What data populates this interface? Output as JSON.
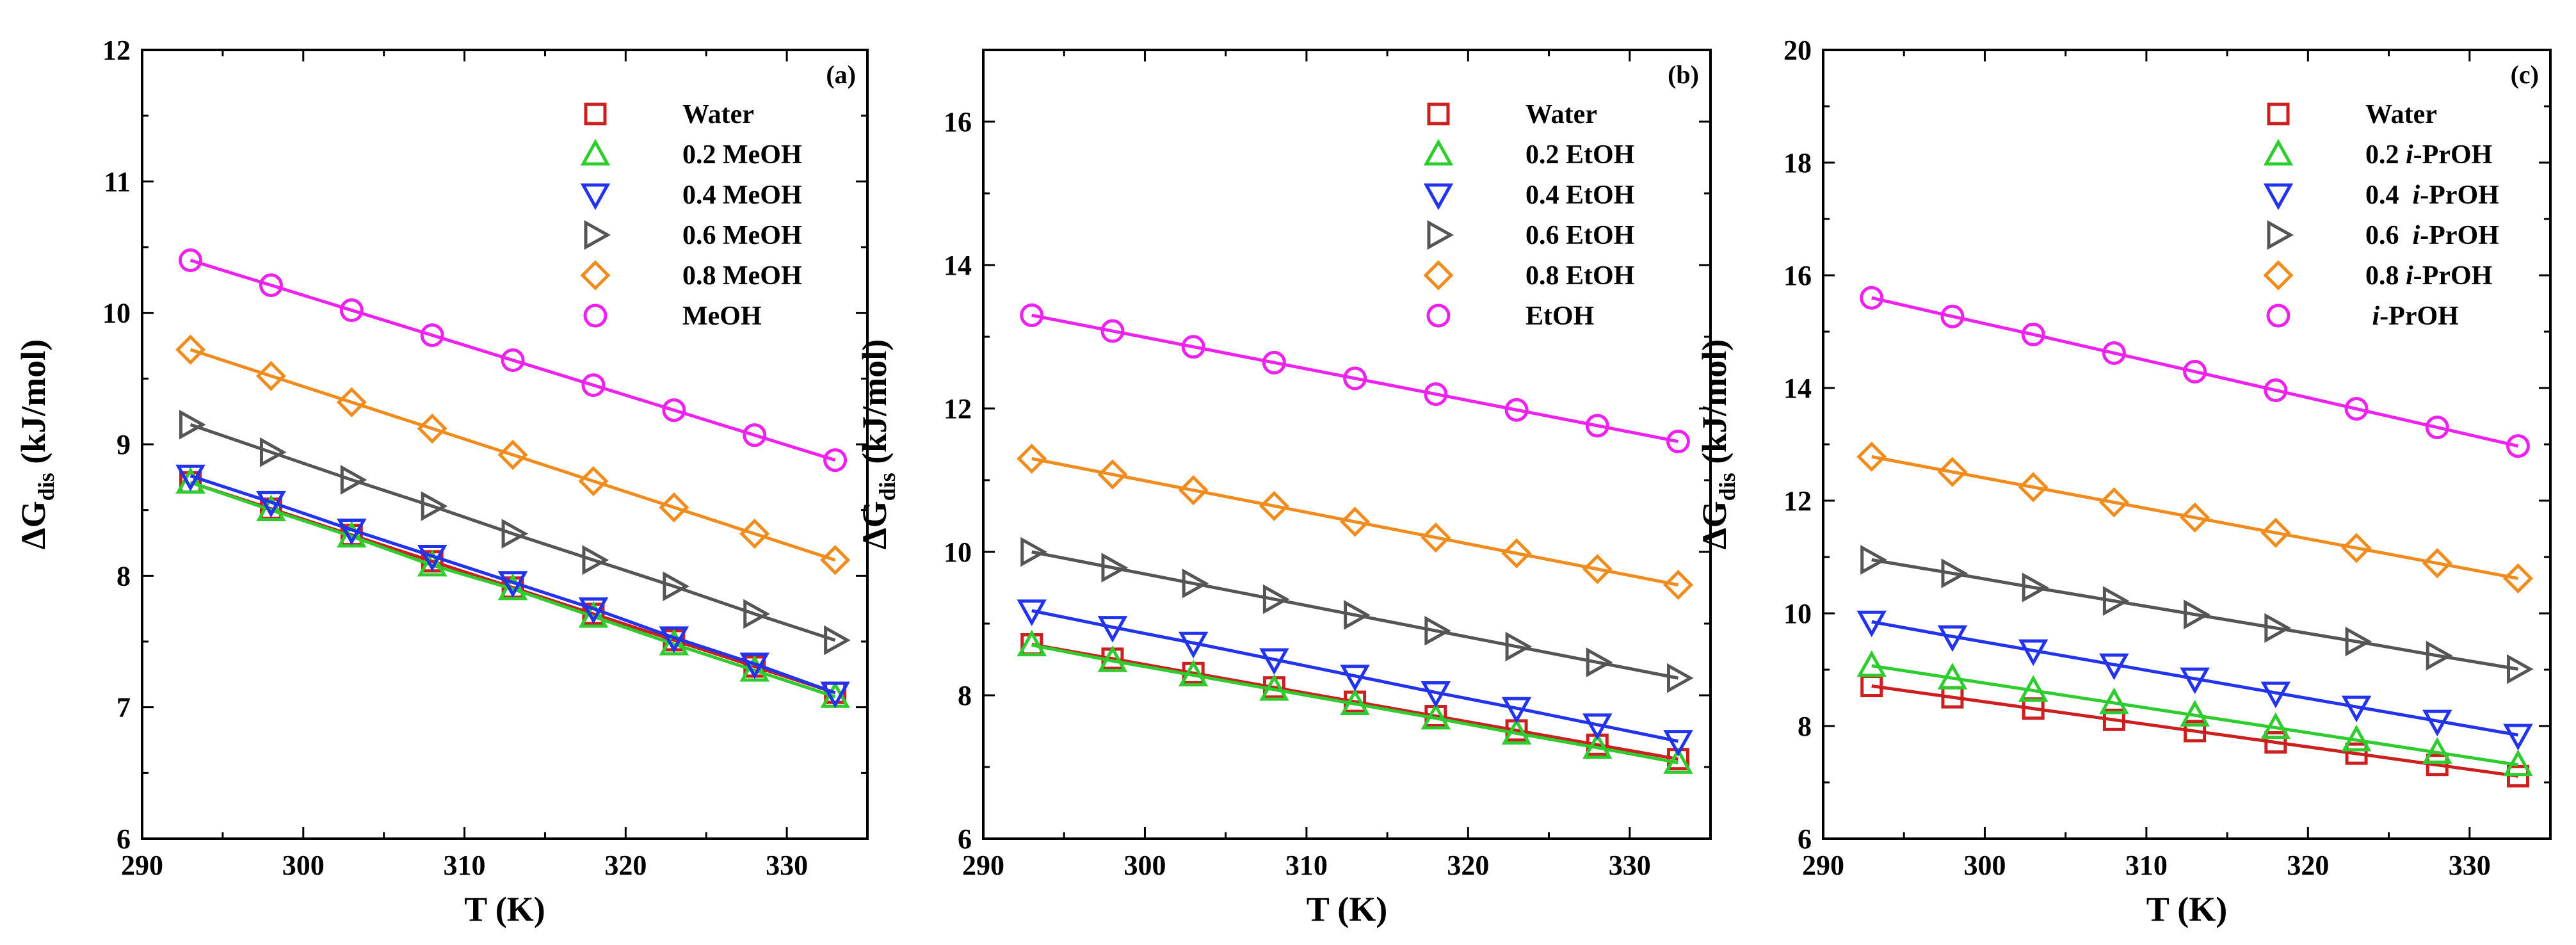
{
  "chart_data": [
    {
      "type": "line",
      "panel_label": "(a)",
      "xlabel": "T (K)",
      "ylabel": "ΔG",
      "ylabel_sub": "dis",
      "ylabel_unit": " (kJ/mol)",
      "xlim": [
        290,
        335
      ],
      "ylim": [
        6,
        12
      ],
      "xticks": [
        290,
        300,
        310,
        320,
        330
      ],
      "yticks": [
        6,
        7,
        8,
        9,
        10,
        11,
        12
      ],
      "legend_position": "top-right",
      "grid": false,
      "x": [
        293,
        298,
        303,
        308,
        313,
        318,
        323,
        328,
        333
      ],
      "series": [
        {
          "name": "Water",
          "marker": "square",
          "color": "#cc1f1f",
          "values": [
            8.71,
            8.51,
            8.31,
            8.11,
            7.91,
            7.71,
            7.51,
            7.31,
            7.11
          ]
        },
        {
          "name": "0.2 MeOH",
          "marker": "triangle-up",
          "color": "#2ecc2e",
          "values": [
            8.71,
            8.5,
            8.3,
            8.08,
            7.9,
            7.69,
            7.48,
            7.28,
            7.08
          ]
        },
        {
          "name": "0.4 MeOH",
          "marker": "triangle-down",
          "color": "#2233ee",
          "values": [
            8.76,
            8.56,
            8.35,
            8.15,
            7.95,
            7.75,
            7.53,
            7.33,
            7.11
          ]
        },
        {
          "name": "0.6 MeOH",
          "marker": "triangle-right",
          "color": "#555555",
          "values": [
            9.15,
            8.94,
            8.73,
            8.53,
            8.32,
            8.12,
            7.92,
            7.71,
            7.51
          ]
        },
        {
          "name": "0.8 MeOH",
          "marker": "diamond",
          "color": "#f08c1e",
          "values": [
            9.72,
            9.52,
            9.32,
            9.12,
            8.92,
            8.72,
            8.52,
            8.32,
            8.12
          ]
        },
        {
          "name": "MeOH",
          "marker": "circle",
          "color": "#ee22ee",
          "values": [
            10.4,
            10.21,
            10.02,
            9.83,
            9.64,
            9.45,
            9.26,
            9.07,
            8.88
          ]
        }
      ]
    },
    {
      "type": "line",
      "panel_label": "(b)",
      "xlabel": "T (K)",
      "ylabel": "ΔG",
      "ylabel_sub": "dis",
      "ylabel_unit": " (kJ/mol)",
      "xlim": [
        290,
        335
      ],
      "ylim": [
        6,
        17
      ],
      "xticks": [
        290,
        300,
        310,
        320,
        330
      ],
      "yticks": [
        6,
        8,
        10,
        12,
        14,
        16
      ],
      "legend_position": "top-right",
      "grid": false,
      "x": [
        293,
        298,
        303,
        308,
        313,
        318,
        323,
        328,
        333
      ],
      "series": [
        {
          "name": "Water",
          "marker": "square",
          "color": "#cc1f1f",
          "values": [
            8.71,
            8.51,
            8.31,
            8.11,
            7.91,
            7.71,
            7.51,
            7.31,
            7.11
          ]
        },
        {
          "name": "0.2 EtOH",
          "marker": "triangle-up",
          "color": "#2ecc2e",
          "values": [
            8.7,
            8.48,
            8.28,
            8.08,
            7.88,
            7.68,
            7.47,
            7.27,
            7.06
          ]
        },
        {
          "name": "0.4 EtOH",
          "marker": "triangle-down",
          "color": "#2233ee",
          "values": [
            9.18,
            8.95,
            8.73,
            8.5,
            8.27,
            8.04,
            7.82,
            7.59,
            7.36
          ]
        },
        {
          "name": "0.6 EtOH",
          "marker": "triangle-right",
          "color": "#555555",
          "values": [
            10.0,
            9.78,
            9.56,
            9.34,
            9.12,
            8.9,
            8.68,
            8.46,
            8.24
          ]
        },
        {
          "name": "0.8 EtOH",
          "marker": "diamond",
          "color": "#f08c1e",
          "values": [
            11.3,
            11.08,
            10.86,
            10.64,
            10.42,
            10.2,
            9.98,
            9.76,
            9.54
          ]
        },
        {
          "name": "EtOH",
          "marker": "circle",
          "color": "#ee22ee",
          "values": [
            13.3,
            13.08,
            12.86,
            12.64,
            12.42,
            12.2,
            11.98,
            11.76,
            11.54
          ]
        }
      ]
    },
    {
      "type": "line",
      "panel_label": "(c)",
      "xlabel": "T (K)",
      "ylabel": "ΔG",
      "ylabel_sub": "dis",
      "ylabel_unit": " (kJ/mol)",
      "xlim": [
        290,
        335
      ],
      "ylim": [
        6,
        20
      ],
      "xticks": [
        290,
        300,
        310,
        320,
        330
      ],
      "yticks": [
        6,
        8,
        10,
        12,
        14,
        16,
        18,
        20
      ],
      "legend_position": "top-right",
      "grid": false,
      "x": [
        293,
        298,
        303,
        308,
        313,
        318,
        323,
        328,
        333
      ],
      "series": [
        {
          "name": "Water",
          "prefix": "",
          "italic": "",
          "suffix": "Water",
          "marker": "square",
          "color": "#cc1f1f",
          "values": [
            8.71,
            8.51,
            8.31,
            8.11,
            7.91,
            7.71,
            7.51,
            7.31,
            7.11
          ]
        },
        {
          "name": "0.2 i-PrOH",
          "prefix": "0.2 ",
          "italic": "i",
          "suffix": "-PrOH",
          "marker": "triangle-up",
          "color": "#2ecc2e",
          "values": [
            9.07,
            8.85,
            8.63,
            8.41,
            8.19,
            7.97,
            7.75,
            7.53,
            7.31
          ]
        },
        {
          "name": "0.4  i-PrOH",
          "prefix": "0.4  ",
          "italic": "i",
          "suffix": "-PrOH",
          "marker": "triangle-down",
          "color": "#2233ee",
          "values": [
            9.85,
            9.59,
            9.34,
            9.09,
            8.84,
            8.59,
            8.34,
            8.09,
            7.84
          ]
        },
        {
          "name": "0.6  i-PrOH",
          "prefix": "0.6  ",
          "italic": "i",
          "suffix": "-PrOH",
          "marker": "triangle-right",
          "color": "#555555",
          "values": [
            10.95,
            10.71,
            10.46,
            10.22,
            9.98,
            9.74,
            9.5,
            9.25,
            9.01
          ]
        },
        {
          "name": "0.8 i-PrOH",
          "prefix": "0.8 ",
          "italic": "i",
          "suffix": "-PrOH",
          "marker": "diamond",
          "color": "#f08c1e",
          "values": [
            12.78,
            12.51,
            12.24,
            11.97,
            11.7,
            11.43,
            11.16,
            10.89,
            10.62
          ]
        },
        {
          "name": " i-PrOH",
          "prefix": " ",
          "italic": "i",
          "suffix": "-PrOH",
          "marker": "circle",
          "color": "#ee22ee",
          "values": [
            15.6,
            15.27,
            14.95,
            14.62,
            14.29,
            13.96,
            13.63,
            13.3,
            12.97
          ]
        }
      ]
    }
  ]
}
